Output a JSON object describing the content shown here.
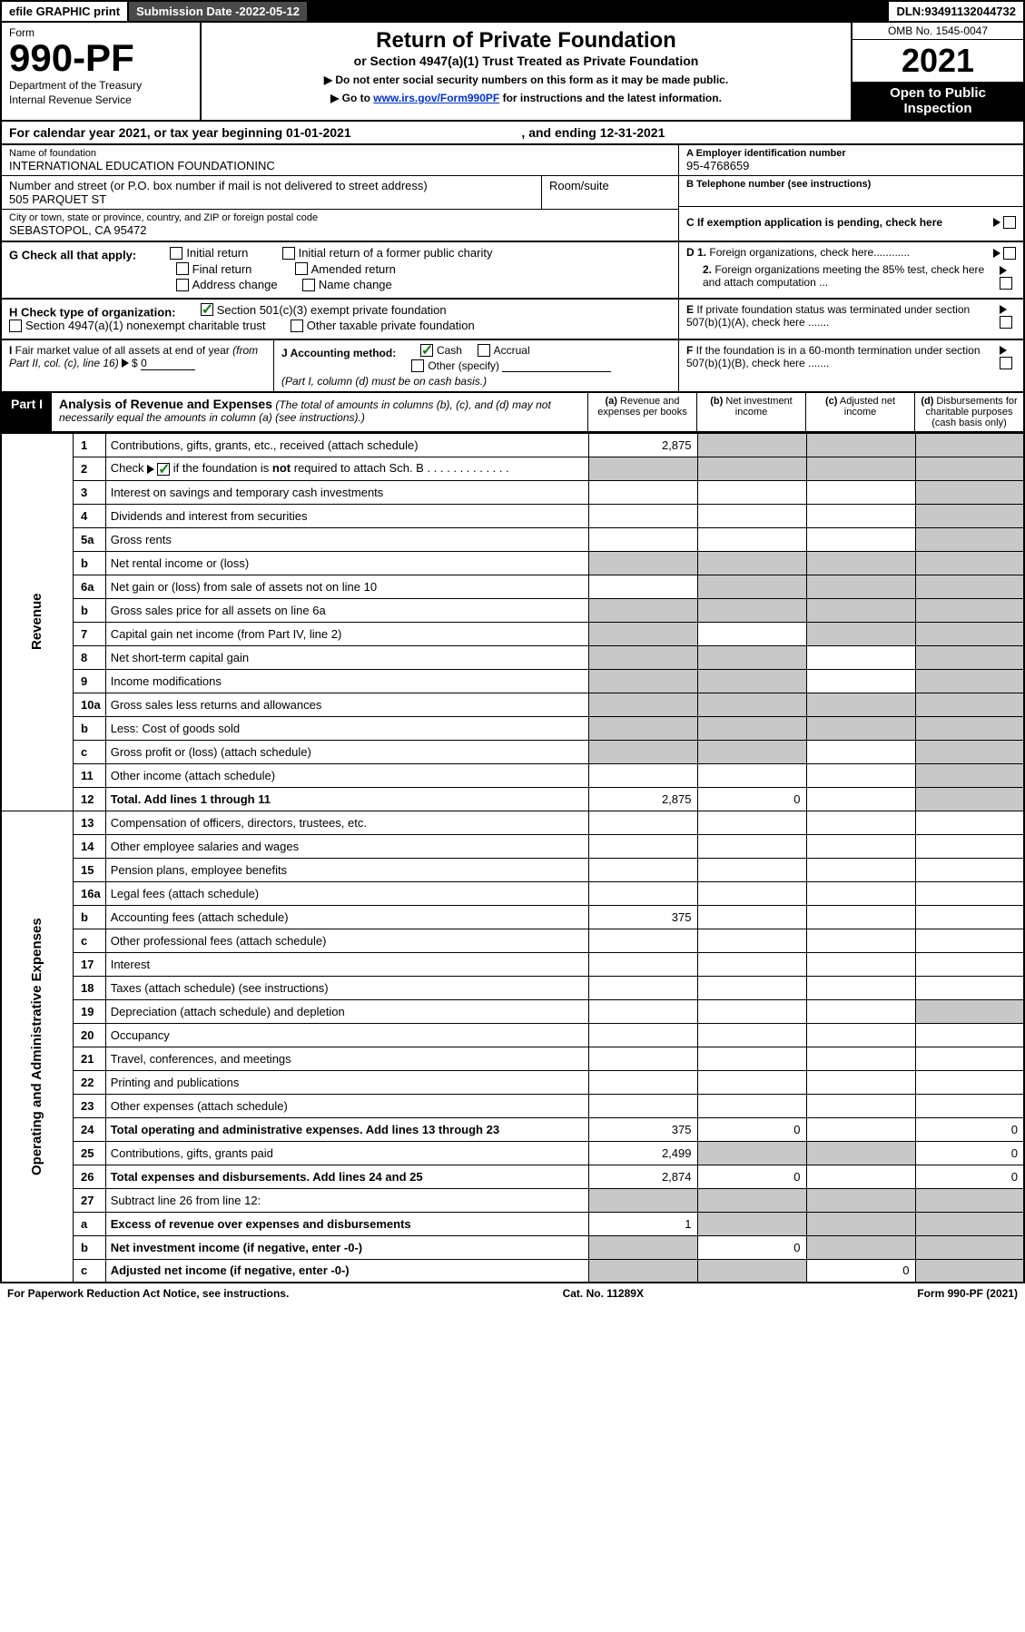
{
  "topbar": {
    "efile": "efile GRAPHIC print",
    "subdate_label": "Submission Date - ",
    "subdate": "2022-05-12",
    "dln_label": "DLN: ",
    "dln": "93491132044732"
  },
  "header": {
    "form_word": "Form",
    "form_num": "990-PF",
    "dept": "Department of the Treasury",
    "irs": "Internal Revenue Service",
    "title": "Return of Private Foundation",
    "subtitle": "or Section 4947(a)(1) Trust Treated as Private Foundation",
    "note1": "▶ Do not enter social security numbers on this form as it may be made public.",
    "note2_a": "▶ Go to ",
    "note2_link": "www.irs.gov/Form990PF",
    "note2_b": " for instructions and the latest information.",
    "omb": "OMB No. 1545-0047",
    "year": "2021",
    "otp": "Open to Public Inspection"
  },
  "calyear": {
    "text_a": "For calendar year 2021, or tax year beginning ",
    "begin": "01-01-2021",
    "text_b": " , and ending ",
    "end": "12-31-2021"
  },
  "info": {
    "name_label": "Name of foundation",
    "name": "INTERNATIONAL EDUCATION FOUNDATIONINC",
    "addr_label": "Number and street (or P.O. box number if mail is not delivered to street address)",
    "addr": "505 PARQUET ST",
    "room_label": "Room/suite",
    "city_label": "City or town, state or province, country, and ZIP or foreign postal code",
    "city": "SEBASTOPOL, CA  95472",
    "ein_label": "A Employer identification number",
    "ein": "95-4768659",
    "phone_label": "B Telephone number (see instructions)",
    "c_label": "C If exemption application is pending, check here",
    "d1": "D 1. Foreign organizations, check here............",
    "d2": "2. Foreign organizations meeting the 85% test, check here and attach computation ...",
    "e": "E If private foundation status was terminated under section 507(b)(1)(A), check here .......",
    "f": "F If the foundation is in a 60-month termination under section 507(b)(1)(B), check here ......."
  },
  "g": {
    "label": "G Check all that apply:",
    "initial": "Initial return",
    "initial_former": "Initial return of a former public charity",
    "final": "Final return",
    "amended": "Amended return",
    "addr_change": "Address change",
    "name_change": "Name change"
  },
  "h": {
    "label": "H Check type of organization:",
    "s501": "Section 501(c)(3) exempt private foundation",
    "s4947": "Section 4947(a)(1) nonexempt charitable trust",
    "other_tax": "Other taxable private foundation"
  },
  "i": {
    "label": "I Fair market value of all assets at end of year (from Part II, col. (c), line 16)",
    "arrow": "▶ $",
    "val": "0"
  },
  "j": {
    "label": "J Accounting method:",
    "cash": "Cash",
    "accrual": "Accrual",
    "other": "Other (specify)",
    "note": "(Part I, column (d) must be on cash basis.)"
  },
  "part1": {
    "tag": "Part I",
    "title": "Analysis of Revenue and Expenses",
    "note": " (The total of amounts in columns (b), (c), and (d) may not necessarily equal the amounts in column (a) (see instructions).)",
    "col_a": "(a) Revenue and expenses per books",
    "col_b": "(b) Net investment income",
    "col_c": "(c) Adjusted net income",
    "col_d": "(d) Disbursements for charitable purposes (cash basis only)"
  },
  "side": {
    "rev": "Revenue",
    "exp": "Operating and Administrative Expenses"
  },
  "rows": [
    {
      "n": "1",
      "d": "Contributions, gifts, grants, etc., received (attach schedule)",
      "a": "2,875",
      "shb": true,
      "shc": true,
      "shd": true
    },
    {
      "n": "2",
      "d": "Check ▶ ☑ if the foundation is not required to attach Sch. B",
      "sha": true,
      "shb": true,
      "shc": true,
      "shd": true,
      "bold_not": true
    },
    {
      "n": "3",
      "d": "Interest on savings and temporary cash investments",
      "shd": true
    },
    {
      "n": "4",
      "d": "Dividends and interest from securities",
      "shd": true
    },
    {
      "n": "5a",
      "d": "Gross rents",
      "shd": true
    },
    {
      "n": "b",
      "d": "Net rental income or (loss)",
      "sha": true,
      "shb": true,
      "shc": true,
      "shd": true,
      "inline": true
    },
    {
      "n": "6a",
      "d": "Net gain or (loss) from sale of assets not on line 10",
      "shb": true,
      "shc": true,
      "shd": true
    },
    {
      "n": "b",
      "d": "Gross sales price for all assets on line 6a",
      "sha": true,
      "shb": true,
      "shc": true,
      "shd": true,
      "inline": true
    },
    {
      "n": "7",
      "d": "Capital gain net income (from Part IV, line 2)",
      "sha": true,
      "shc": true,
      "shd": true
    },
    {
      "n": "8",
      "d": "Net short-term capital gain",
      "sha": true,
      "shb": true,
      "shd": true
    },
    {
      "n": "9",
      "d": "Income modifications",
      "sha": true,
      "shb": true,
      "shd": true
    },
    {
      "n": "10a",
      "d": "Gross sales less returns and allowances",
      "sha": true,
      "shb": true,
      "shc": true,
      "shd": true,
      "inline": true
    },
    {
      "n": "b",
      "d": "Less: Cost of goods sold",
      "sha": true,
      "shb": true,
      "shc": true,
      "shd": true,
      "inline": true
    },
    {
      "n": "c",
      "d": "Gross profit or (loss) (attach schedule)",
      "sha": true,
      "shb": true,
      "shd": true
    },
    {
      "n": "11",
      "d": "Other income (attach schedule)",
      "shd": true
    },
    {
      "n": "12",
      "d": "Total. Add lines 1 through 11",
      "a": "2,875",
      "b": "0",
      "shd": true,
      "bold": true
    }
  ],
  "exp_rows": [
    {
      "n": "13",
      "d": "Compensation of officers, directors, trustees, etc."
    },
    {
      "n": "14",
      "d": "Other employee salaries and wages"
    },
    {
      "n": "15",
      "d": "Pension plans, employee benefits"
    },
    {
      "n": "16a",
      "d": "Legal fees (attach schedule)"
    },
    {
      "n": "b",
      "d": "Accounting fees (attach schedule)",
      "a": "375"
    },
    {
      "n": "c",
      "d": "Other professional fees (attach schedule)"
    },
    {
      "n": "17",
      "d": "Interest"
    },
    {
      "n": "18",
      "d": "Taxes (attach schedule) (see instructions)"
    },
    {
      "n": "19",
      "d": "Depreciation (attach schedule) and depletion",
      "shd": true
    },
    {
      "n": "20",
      "d": "Occupancy"
    },
    {
      "n": "21",
      "d": "Travel, conferences, and meetings"
    },
    {
      "n": "22",
      "d": "Printing and publications"
    },
    {
      "n": "23",
      "d": "Other expenses (attach schedule)"
    },
    {
      "n": "24",
      "d": "Total operating and administrative expenses. Add lines 13 through 23",
      "a": "375",
      "b": "0",
      "d_val": "0",
      "bold": true
    },
    {
      "n": "25",
      "d": "Contributions, gifts, grants paid",
      "a": "2,499",
      "shb": true,
      "shc": true,
      "d_val": "0"
    },
    {
      "n": "26",
      "d": "Total expenses and disbursements. Add lines 24 and 25",
      "a": "2,874",
      "b": "0",
      "d_val": "0",
      "bold": true
    },
    {
      "n": "27",
      "d": "Subtract line 26 from line 12:",
      "sha": true,
      "shb": true,
      "shc": true,
      "shd": true
    },
    {
      "n": "a",
      "d": "Excess of revenue over expenses and disbursements",
      "a": "1",
      "shb": true,
      "shc": true,
      "shd": true,
      "bold": true
    },
    {
      "n": "b",
      "d": "Net investment income (if negative, enter -0-)",
      "sha": true,
      "b": "0",
      "shc": true,
      "shd": true,
      "bold": true
    },
    {
      "n": "c",
      "d": "Adjusted net income (if negative, enter -0-)",
      "sha": true,
      "shb": true,
      "c": "0",
      "shd": true,
      "bold": true
    }
  ],
  "footer": {
    "left": "For Paperwork Reduction Act Notice, see instructions.",
    "mid": "Cat. No. 11289X",
    "right": "Form 990-PF (2021)"
  },
  "colors": {
    "shade": "#c8c8c8",
    "link": "#0033cc",
    "check": "#1a7a1a"
  }
}
